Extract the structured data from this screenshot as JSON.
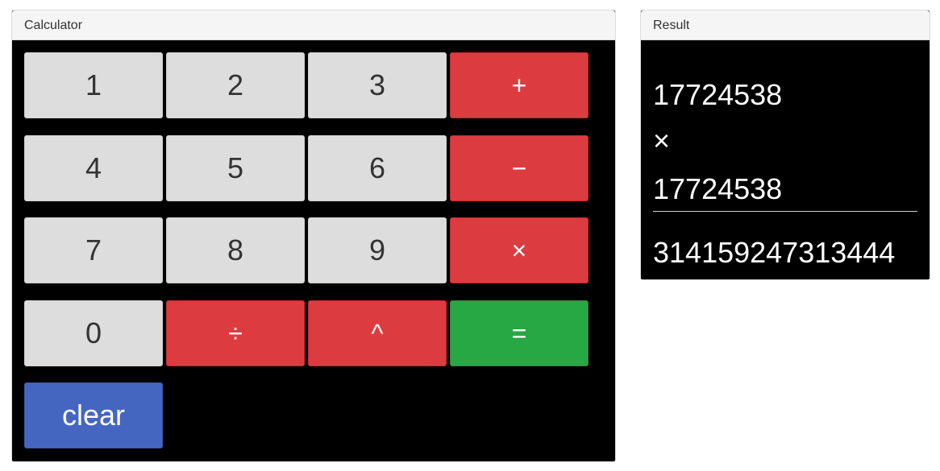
{
  "calculator": {
    "title": "Calculator",
    "keys": {
      "k1": "1",
      "k2": "2",
      "k3": "3",
      "plus": "+",
      "k4": "4",
      "k5": "5",
      "k6": "6",
      "minus": "−",
      "k7": "7",
      "k8": "8",
      "k9": "9",
      "times": "×",
      "k0": "0",
      "divide": "÷",
      "power": "^",
      "equals": "=",
      "clear": "clear"
    },
    "colors": {
      "number_key": "#dddddd",
      "operator_key": "#dc3c40",
      "equals_key": "#28a745",
      "clear_key": "#4566c0",
      "panel_background": "#000000"
    }
  },
  "result": {
    "title": "Result",
    "operand1": "17724538",
    "operator": "×",
    "operand2": "17724538",
    "answer": "314159247313444"
  }
}
